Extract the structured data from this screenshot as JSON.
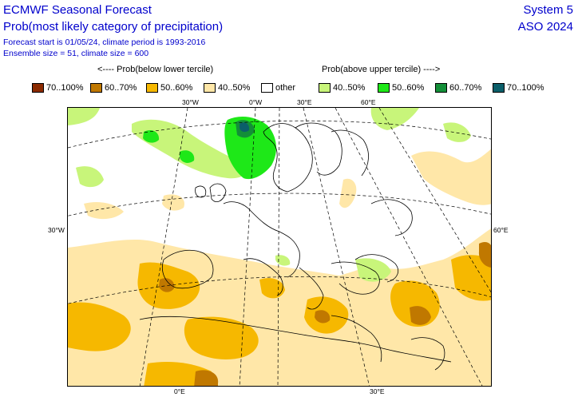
{
  "header": {
    "title": "ECMWF Seasonal Forecast",
    "subtitle": "Prob(most likely category of precipitation)",
    "info_line1": "Forecast start is 01/05/24, climate period is 1993-2016",
    "info_line2": "Ensemble size = 51, climate size = 600",
    "system": "System 5",
    "period": "ASO 2024"
  },
  "legend": {
    "below_heading": "<---- Prob(below lower tercile)",
    "above_heading": "Prob(above upper tercile) ---->",
    "items": [
      {
        "label": "70..100%",
        "color": "#8b2a00"
      },
      {
        "label": "60..70%",
        "color": "#c07800"
      },
      {
        "label": "50..60%",
        "color": "#f6b800"
      },
      {
        "label": "40..50%",
        "color": "#ffe7a8"
      },
      {
        "label": "other",
        "color": "#ffffff"
      },
      {
        "label": "40..50%",
        "color": "#c8f57a"
      },
      {
        "label": "50..60%",
        "color": "#1ee818"
      },
      {
        "label": "60..70%",
        "color": "#138f38"
      },
      {
        "label": "70..100%",
        "color": "#0b5f6a"
      }
    ]
  },
  "map": {
    "top_ticks": [
      "30°W",
      "0°W",
      "30°E",
      "60°E"
    ],
    "left_tick": "30°W",
    "right_tick": "60°E",
    "bottom_ticks": [
      "0°E",
      "30°E"
    ]
  }
}
